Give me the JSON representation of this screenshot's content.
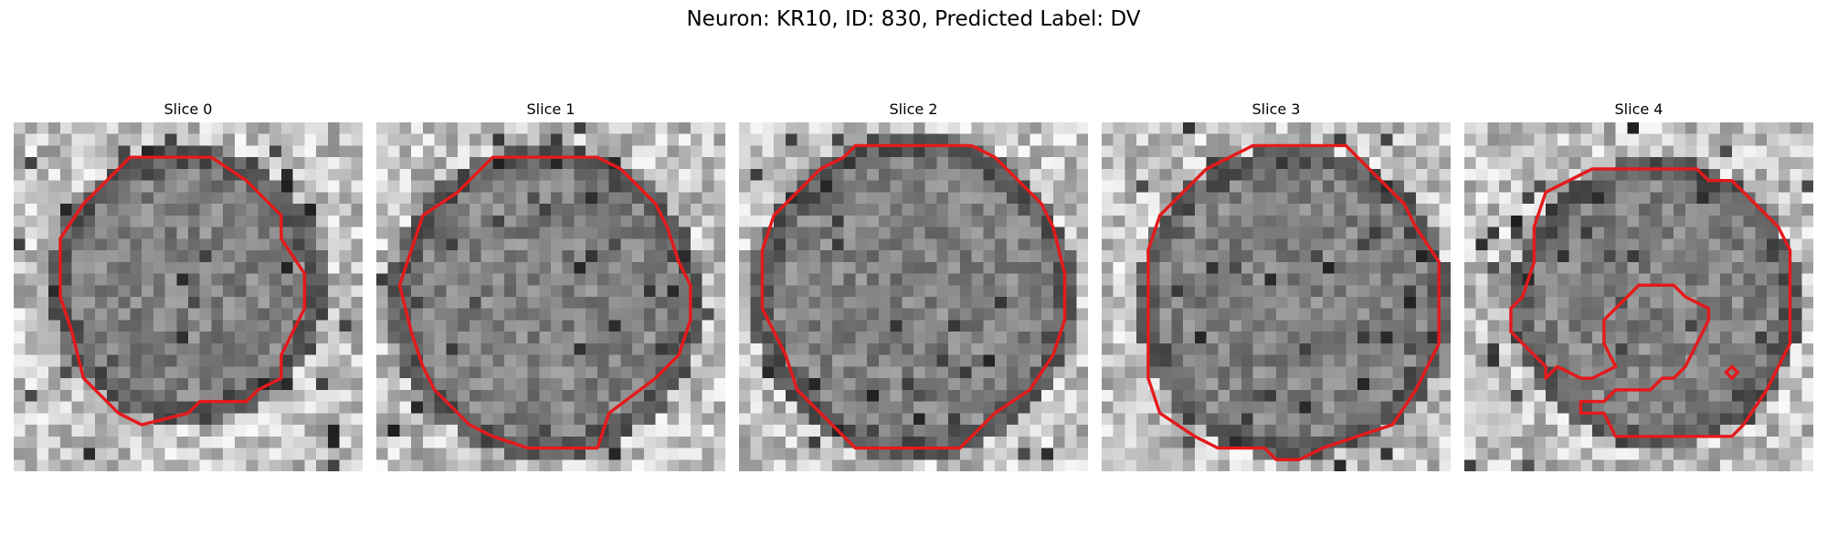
{
  "figure": {
    "title": "Neuron: KR10, ID: 830, Predicted Label: DV"
  },
  "contour_color": "#e41a1c",
  "panels": [
    {
      "title": "Slice 0"
    },
    {
      "title": "Slice 1"
    },
    {
      "title": "Slice 2"
    },
    {
      "title": "Slice 3"
    },
    {
      "title": "Slice 4"
    }
  ]
}
